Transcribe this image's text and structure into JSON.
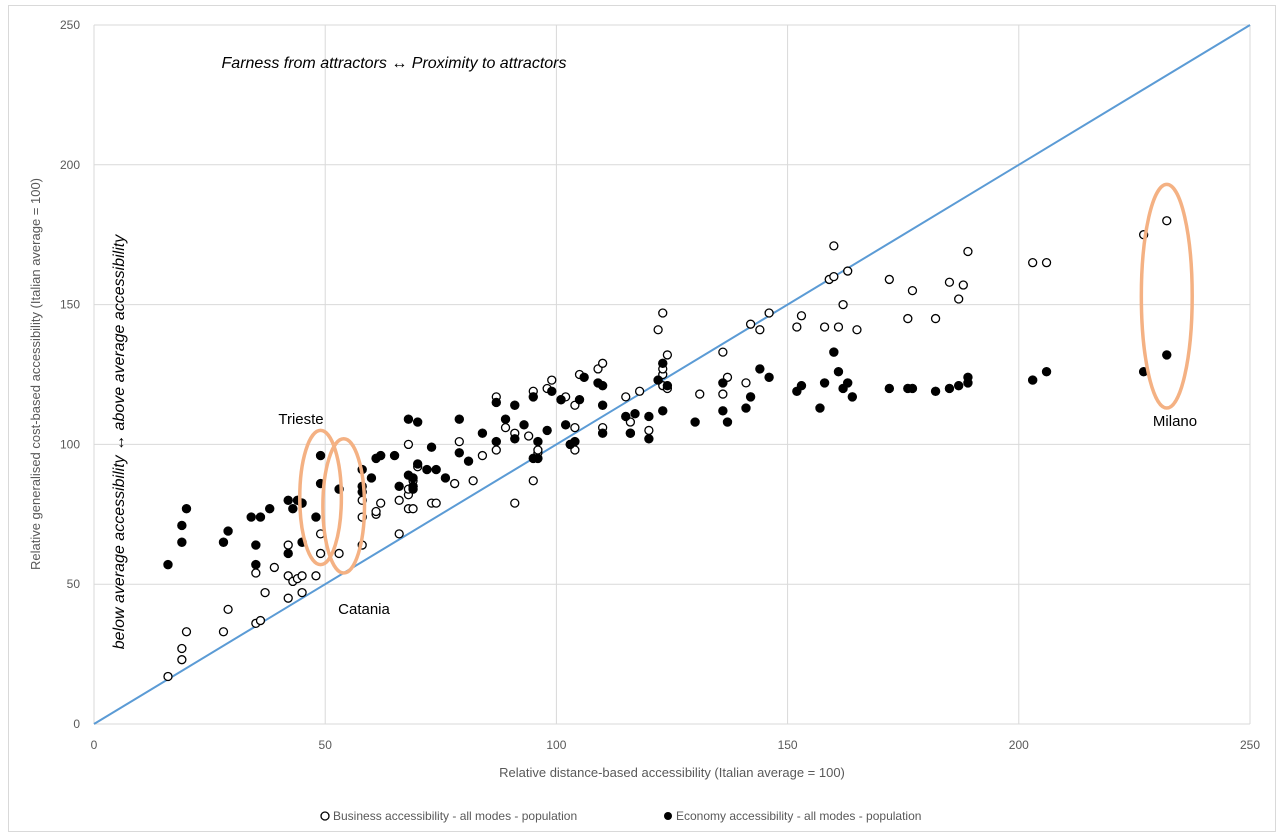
{
  "chart_data": {
    "type": "scatter",
    "xlabel": "Relative distance-based accessibility (Italian average = 100)",
    "ylabel": "Relative generalised cost-based accessibility (Italian average = 100)",
    "xlim": [
      0,
      250
    ],
    "ylim": [
      0,
      250
    ],
    "x_ticks": [
      "0",
      "50",
      "100",
      "150",
      "200",
      "250"
    ],
    "y_ticks": [
      "0",
      "50",
      "100",
      "150",
      "200",
      "250"
    ],
    "grid": true,
    "legend_position": "bottom",
    "reference_line": {
      "from": [
        0,
        0
      ],
      "to": [
        250,
        250
      ],
      "color": "#5b9bd5"
    },
    "highlight_color": "#f4b183",
    "annotations": {
      "top": "Farness from attractors ↔ Proximity to attractors",
      "side": "below average accessibility ↔ above average accessibility",
      "trieste": "Trieste",
      "catania": "Catania",
      "milano": "Milano"
    },
    "series": [
      {
        "name": "Business  accessibility - all modes - population",
        "marker": "open-circle",
        "points": [
          [
            16,
            17
          ],
          [
            19,
            23
          ],
          [
            19,
            27
          ],
          [
            20,
            33
          ],
          [
            28,
            33
          ],
          [
            29,
            41
          ],
          [
            35,
            36
          ],
          [
            36,
            37
          ],
          [
            35,
            54
          ],
          [
            37,
            47
          ],
          [
            39,
            56
          ],
          [
            42,
            45
          ],
          [
            42,
            53
          ],
          [
            43,
            51
          ],
          [
            44,
            52
          ],
          [
            45,
            47
          ],
          [
            45,
            53
          ],
          [
            42,
            64
          ],
          [
            48,
            53
          ],
          [
            49,
            61
          ],
          [
            49,
            68
          ],
          [
            53,
            61
          ],
          [
            58,
            64
          ],
          [
            58,
            74
          ],
          [
            58,
            80
          ],
          [
            61,
            75
          ],
          [
            61,
            76
          ],
          [
            62,
            79
          ],
          [
            66,
            68
          ],
          [
            66,
            80
          ],
          [
            68,
            77
          ],
          [
            68,
            82
          ],
          [
            68,
            84
          ],
          [
            68,
            100
          ],
          [
            69,
            77
          ],
          [
            69,
            85
          ],
          [
            69,
            87
          ],
          [
            70,
            92
          ],
          [
            73,
            79
          ],
          [
            74,
            79
          ],
          [
            78,
            86
          ],
          [
            79,
            101
          ],
          [
            82,
            87
          ],
          [
            84,
            96
          ],
          [
            87,
            98
          ],
          [
            87,
            117
          ],
          [
            89,
            106
          ],
          [
            91,
            79
          ],
          [
            91,
            104
          ],
          [
            94,
            103
          ],
          [
            95,
            119
          ],
          [
            95,
            87
          ],
          [
            96,
            97
          ],
          [
            96,
            98
          ],
          [
            98,
            120
          ],
          [
            99,
            123
          ],
          [
            101,
            116
          ],
          [
            102,
            117
          ],
          [
            103,
            100
          ],
          [
            104,
            98
          ],
          [
            104,
            106
          ],
          [
            104,
            114
          ],
          [
            105,
            125
          ],
          [
            109,
            127
          ],
          [
            110,
            106
          ],
          [
            110,
            129
          ],
          [
            115,
            117
          ],
          [
            116,
            104
          ],
          [
            116,
            108
          ],
          [
            118,
            119
          ],
          [
            120,
            105
          ],
          [
            122,
            141
          ],
          [
            123,
            121
          ],
          [
            123,
            125
          ],
          [
            123,
            127
          ],
          [
            123,
            147
          ],
          [
            124,
            132
          ],
          [
            124,
            120
          ],
          [
            131,
            118
          ],
          [
            136,
            118
          ],
          [
            136,
            133
          ],
          [
            137,
            124
          ],
          [
            141,
            122
          ],
          [
            142,
            143
          ],
          [
            144,
            141
          ],
          [
            146,
            147
          ],
          [
            152,
            142
          ],
          [
            153,
            146
          ],
          [
            158,
            142
          ],
          [
            159,
            159
          ],
          [
            160,
            171
          ],
          [
            160,
            160
          ],
          [
            161,
            142
          ],
          [
            162,
            150
          ],
          [
            163,
            162
          ],
          [
            165,
            141
          ],
          [
            172,
            159
          ],
          [
            176,
            145
          ],
          [
            177,
            155
          ],
          [
            182,
            145
          ],
          [
            185,
            158
          ],
          [
            187,
            152
          ],
          [
            188,
            157
          ],
          [
            189,
            169
          ],
          [
            203,
            165
          ],
          [
            206,
            165
          ],
          [
            227,
            175
          ],
          [
            232,
            180
          ]
        ]
      },
      {
        "name": "Economy accessibility - all modes - population",
        "marker": "filled-circle",
        "points": [
          [
            16,
            57
          ],
          [
            19,
            65
          ],
          [
            19,
            71
          ],
          [
            20,
            77
          ],
          [
            28,
            65
          ],
          [
            29,
            69
          ],
          [
            34,
            74
          ],
          [
            35,
            57
          ],
          [
            35,
            64
          ],
          [
            36,
            74
          ],
          [
            38,
            77
          ],
          [
            42,
            61
          ],
          [
            42,
            80
          ],
          [
            43,
            77
          ],
          [
            44,
            80
          ],
          [
            45,
            65
          ],
          [
            45,
            79
          ],
          [
            48,
            74
          ],
          [
            49,
            96
          ],
          [
            49,
            86
          ],
          [
            53,
            84
          ],
          [
            58,
            91
          ],
          [
            58,
            85
          ],
          [
            58,
            83
          ],
          [
            60,
            88
          ],
          [
            61,
            95
          ],
          [
            62,
            96
          ],
          [
            65,
            96
          ],
          [
            66,
            85
          ],
          [
            68,
            109
          ],
          [
            68,
            89
          ],
          [
            69,
            85
          ],
          [
            69,
            84
          ],
          [
            69,
            88
          ],
          [
            70,
            108
          ],
          [
            70,
            93
          ],
          [
            72,
            91
          ],
          [
            73,
            99
          ],
          [
            74,
            91
          ],
          [
            76,
            88
          ],
          [
            79,
            109
          ],
          [
            79,
            97
          ],
          [
            81,
            94
          ],
          [
            84,
            104
          ],
          [
            87,
            101
          ],
          [
            87,
            115
          ],
          [
            89,
            109
          ],
          [
            91,
            102
          ],
          [
            91,
            114
          ],
          [
            93,
            107
          ],
          [
            95,
            117
          ],
          [
            95,
            95
          ],
          [
            96,
            101
          ],
          [
            96,
            95
          ],
          [
            98,
            105
          ],
          [
            99,
            119
          ],
          [
            101,
            116
          ],
          [
            102,
            107
          ],
          [
            103,
            100
          ],
          [
            104,
            101
          ],
          [
            105,
            116
          ],
          [
            106,
            124
          ],
          [
            109,
            122
          ],
          [
            110,
            114
          ],
          [
            110,
            104
          ],
          [
            110,
            121
          ],
          [
            115,
            110
          ],
          [
            116,
            104
          ],
          [
            117,
            111
          ],
          [
            120,
            110
          ],
          [
            120,
            102
          ],
          [
            122,
            123
          ],
          [
            123,
            129
          ],
          [
            123,
            112
          ],
          [
            124,
            121
          ],
          [
            130,
            108
          ],
          [
            136,
            112
          ],
          [
            136,
            122
          ],
          [
            137,
            108
          ],
          [
            141,
            113
          ],
          [
            142,
            117
          ],
          [
            144,
            127
          ],
          [
            146,
            124
          ],
          [
            152,
            119
          ],
          [
            153,
            121
          ],
          [
            157,
            113
          ],
          [
            158,
            122
          ],
          [
            160,
            133
          ],
          [
            161,
            126
          ],
          [
            162,
            120
          ],
          [
            163,
            122
          ],
          [
            164,
            117
          ],
          [
            172,
            120
          ],
          [
            176,
            120
          ],
          [
            177,
            120
          ],
          [
            182,
            119
          ],
          [
            185,
            120
          ],
          [
            187,
            121
          ],
          [
            189,
            122
          ],
          [
            189,
            124
          ],
          [
            203,
            123
          ],
          [
            206,
            126
          ],
          [
            227,
            126
          ],
          [
            232,
            132
          ]
        ]
      }
    ],
    "highlights": [
      {
        "label": "Trieste",
        "cx": 49,
        "cy": 81,
        "rx": 4.5,
        "ry": 24
      },
      {
        "label": "Catania",
        "cx": 54,
        "cy": 78,
        "rx": 4.5,
        "ry": 24
      },
      {
        "label": "Milano",
        "cx": 232,
        "cy": 153,
        "rx": 5.5,
        "ry": 40
      }
    ]
  }
}
